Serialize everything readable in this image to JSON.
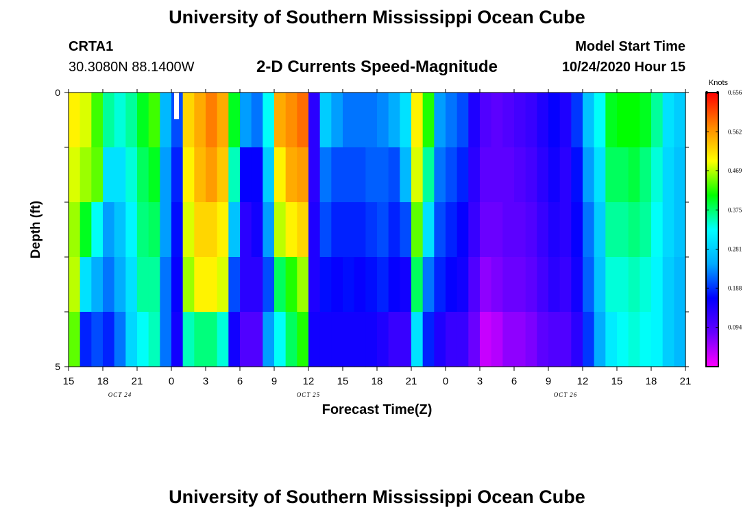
{
  "header": {
    "title": "University of Southern Mississippi Ocean Cube",
    "station": "CRTA1",
    "coords": "30.3080N 88.1400W",
    "subtitle": "2-D Currents Speed-Magnitude",
    "model_label": "Model Start Time",
    "model_time": "10/24/2020 Hour 15"
  },
  "footer": {
    "title": "University of Southern Mississippi Ocean Cube"
  },
  "chart_data": {
    "type": "heatmap",
    "title": "2-D Currents Speed-Magnitude",
    "xlabel": "Forecast Time(Z)",
    "ylabel": "Depth (ft)",
    "x_tick_labels": [
      "15",
      "18",
      "21",
      "0",
      "3",
      "6",
      "9",
      "12",
      "15",
      "18",
      "21",
      "0",
      "3",
      "6",
      "9",
      "12",
      "15",
      "18",
      "21"
    ],
    "x_hours": [
      0,
      54
    ],
    "date_labels": [
      {
        "text": "OCT 24",
        "hour": 4.5
      },
      {
        "text": "OCT 25",
        "hour": 21
      },
      {
        "text": "OCT 26",
        "hour": 43.5
      }
    ],
    "y_tick_labels": [
      "0",
      "5"
    ],
    "ylim": [
      0,
      5
    ],
    "depth_rows": 5,
    "colorbar": {
      "unit": "Knots",
      "min": 0.0,
      "max": 0.656,
      "ticks": [
        "0.656",
        "0.562",
        "0.469",
        "0.375",
        "0.281",
        "0.188",
        "0.094"
      ],
      "colors": [
        "#ff00ff",
        "#6600ff",
        "#0000ff",
        "#00aaff",
        "#00ffff",
        "#00ff00",
        "#ffff00",
        "#ff8800",
        "#ff0000"
      ]
    },
    "columns": [
      [
        0.5,
        0.48,
        0.46,
        0.47,
        0.44
      ],
      [
        0.48,
        0.46,
        0.4,
        0.3,
        0.18
      ],
      [
        0.43,
        0.44,
        0.33,
        0.25,
        0.2
      ],
      [
        0.36,
        0.3,
        0.24,
        0.22,
        0.18
      ],
      [
        0.34,
        0.3,
        0.27,
        0.25,
        0.22
      ],
      [
        0.36,
        0.34,
        0.32,
        0.3,
        0.29
      ],
      [
        0.4,
        0.38,
        0.37,
        0.36,
        0.33
      ],
      [
        0.43,
        0.4,
        0.38,
        0.36,
        0.35
      ],
      [
        0.26,
        0.24,
        0.24,
        0.22,
        0.22
      ],
      [
        0.2,
        0.18,
        0.17,
        0.16,
        0.15
      ],
      [
        0.52,
        0.5,
        0.48,
        0.46,
        0.35
      ],
      [
        0.55,
        0.54,
        0.52,
        0.5,
        0.37
      ],
      [
        0.58,
        0.56,
        0.52,
        0.5,
        0.37
      ],
      [
        0.55,
        0.53,
        0.5,
        0.48,
        0.34
      ],
      [
        0.4,
        0.35,
        0.27,
        0.2,
        0.15
      ],
      [
        0.24,
        0.16,
        0.13,
        0.13,
        0.1
      ],
      [
        0.22,
        0.16,
        0.15,
        0.13,
        0.1
      ],
      [
        0.33,
        0.28,
        0.24,
        0.2,
        0.24
      ],
      [
        0.55,
        0.5,
        0.47,
        0.38,
        0.33
      ],
      [
        0.57,
        0.55,
        0.5,
        0.42,
        0.38
      ],
      [
        0.59,
        0.56,
        0.52,
        0.46,
        0.42
      ],
      [
        0.13,
        0.13,
        0.14,
        0.14,
        0.15
      ],
      [
        0.28,
        0.22,
        0.2,
        0.17,
        0.15
      ],
      [
        0.24,
        0.2,
        0.18,
        0.16,
        0.15
      ],
      [
        0.22,
        0.2,
        0.18,
        0.17,
        0.15
      ],
      [
        0.22,
        0.2,
        0.18,
        0.16,
        0.15
      ],
      [
        0.22,
        0.21,
        0.19,
        0.17,
        0.15
      ],
      [
        0.23,
        0.21,
        0.2,
        0.18,
        0.14
      ],
      [
        0.25,
        0.2,
        0.18,
        0.16,
        0.12
      ],
      [
        0.3,
        0.26,
        0.2,
        0.15,
        0.12
      ],
      [
        0.5,
        0.48,
        0.44,
        0.38,
        0.3
      ],
      [
        0.42,
        0.36,
        0.3,
        0.22,
        0.18
      ],
      [
        0.24,
        0.22,
        0.2,
        0.18,
        0.14
      ],
      [
        0.22,
        0.2,
        0.18,
        0.16,
        0.12
      ],
      [
        0.2,
        0.18,
        0.16,
        0.15,
        0.12
      ],
      [
        0.14,
        0.13,
        0.12,
        0.1,
        0.08
      ],
      [
        0.1,
        0.09,
        0.08,
        0.06,
        0.03
      ],
      [
        0.09,
        0.09,
        0.08,
        0.07,
        0.04
      ],
      [
        0.1,
        0.09,
        0.09,
        0.08,
        0.06
      ],
      [
        0.11,
        0.1,
        0.09,
        0.08,
        0.06
      ],
      [
        0.12,
        0.11,
        0.1,
        0.09,
        0.07
      ],
      [
        0.14,
        0.13,
        0.12,
        0.11,
        0.09
      ],
      [
        0.16,
        0.15,
        0.14,
        0.13,
        0.1
      ],
      [
        0.14,
        0.13,
        0.13,
        0.12,
        0.1
      ],
      [
        0.19,
        0.17,
        0.16,
        0.15,
        0.13
      ],
      [
        0.27,
        0.24,
        0.22,
        0.21,
        0.19
      ],
      [
        0.33,
        0.3,
        0.28,
        0.27,
        0.25
      ],
      [
        0.4,
        0.38,
        0.36,
        0.34,
        0.31
      ],
      [
        0.41,
        0.38,
        0.36,
        0.34,
        0.33
      ],
      [
        0.41,
        0.39,
        0.37,
        0.35,
        0.34
      ],
      [
        0.4,
        0.37,
        0.36,
        0.34,
        0.33
      ],
      [
        0.36,
        0.34,
        0.33,
        0.32,
        0.32
      ],
      [
        0.3,
        0.29,
        0.29,
        0.28,
        0.28
      ],
      [
        0.28,
        0.27,
        0.27,
        0.26,
        0.26
      ]
    ]
  }
}
